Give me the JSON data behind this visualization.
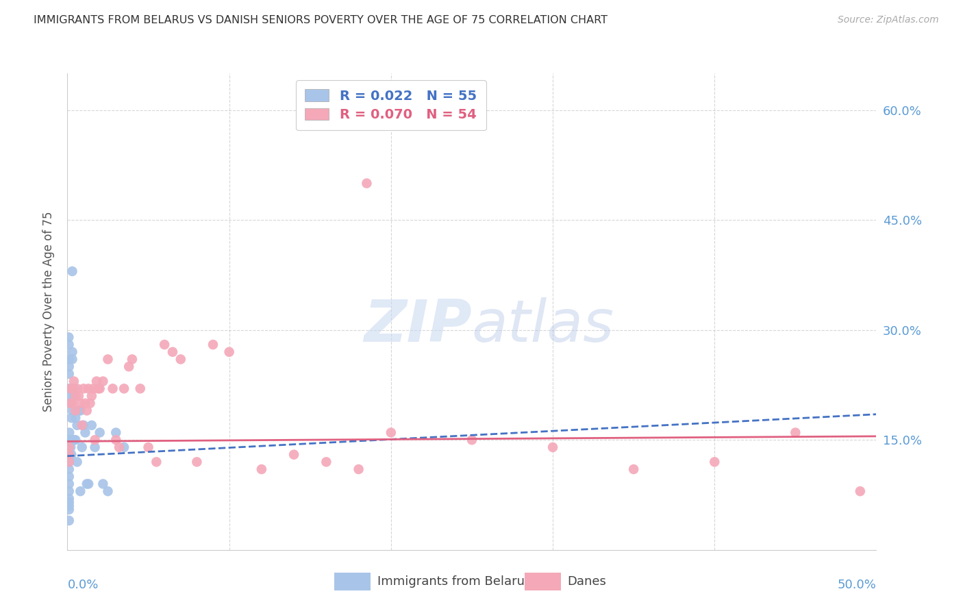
{
  "title": "IMMIGRANTS FROM BELARUS VS DANISH SENIORS POVERTY OVER THE AGE OF 75 CORRELATION CHART",
  "source": "Source: ZipAtlas.com",
  "ylabel": "Seniors Poverty Over the Age of 75",
  "right_yticks": [
    "60.0%",
    "45.0%",
    "30.0%",
    "15.0%"
  ],
  "right_ytick_vals": [
    0.6,
    0.45,
    0.3,
    0.15
  ],
  "legend_blue_label": "R = 0.022   N = 55",
  "legend_pink_label": "R = 0.070   N = 54",
  "legend_label_blue": "Immigrants from Belarus",
  "legend_label_pink": "Danes",
  "blue_color": "#a8c4e8",
  "pink_color": "#f4a8b8",
  "blue_line_color": "#4472c4",
  "pink_line_color": "#e06080",
  "axis_label_color": "#5b9bd5",
  "watermark_color": "#dce8f5",
  "xlim": [
    0.0,
    0.5
  ],
  "ylim": [
    0.0,
    0.65
  ],
  "blue_trend_x0": 0.0,
  "blue_trend_y0": 0.128,
  "blue_trend_x1": 0.5,
  "blue_trend_y1": 0.185,
  "pink_trend_x0": 0.0,
  "pink_trend_y0": 0.148,
  "pink_trend_x1": 0.5,
  "pink_trend_y1": 0.155,
  "background_color": "#ffffff",
  "grid_color": "#cccccc",
  "blue_x": [
    0.0008,
    0.0008,
    0.0009,
    0.001,
    0.001,
    0.001,
    0.001,
    0.001,
    0.001,
    0.001,
    0.001,
    0.001,
    0.001,
    0.001,
    0.0012,
    0.0015,
    0.002,
    0.002,
    0.0025,
    0.003,
    0.003,
    0.003,
    0.004,
    0.004,
    0.005,
    0.006,
    0.007,
    0.008,
    0.009,
    0.01,
    0.011,
    0.012,
    0.013,
    0.015,
    0.017,
    0.02,
    0.022,
    0.025,
    0.03,
    0.035,
    0.0008,
    0.0009,
    0.001,
    0.001,
    0.001,
    0.001,
    0.0015,
    0.002,
    0.0025,
    0.003,
    0.004,
    0.005,
    0.006,
    0.008,
    0.001
  ],
  "blue_y": [
    0.14,
    0.13,
    0.15,
    0.14,
    0.13,
    0.12,
    0.11,
    0.1,
    0.09,
    0.08,
    0.07,
    0.065,
    0.055,
    0.04,
    0.16,
    0.2,
    0.15,
    0.14,
    0.13,
    0.38,
    0.27,
    0.26,
    0.22,
    0.21,
    0.18,
    0.17,
    0.19,
    0.19,
    0.14,
    0.17,
    0.16,
    0.09,
    0.09,
    0.17,
    0.14,
    0.16,
    0.09,
    0.08,
    0.16,
    0.14,
    0.29,
    0.28,
    0.26,
    0.25,
    0.24,
    0.22,
    0.21,
    0.2,
    0.18,
    0.19,
    0.15,
    0.15,
    0.12,
    0.08,
    0.06
  ],
  "pink_x": [
    0.001,
    0.001,
    0.001,
    0.002,
    0.002,
    0.003,
    0.003,
    0.004,
    0.005,
    0.005,
    0.006,
    0.007,
    0.008,
    0.009,
    0.01,
    0.011,
    0.012,
    0.013,
    0.014,
    0.015,
    0.016,
    0.017,
    0.018,
    0.019,
    0.02,
    0.022,
    0.025,
    0.028,
    0.03,
    0.032,
    0.035,
    0.038,
    0.04,
    0.045,
    0.05,
    0.055,
    0.06,
    0.065,
    0.07,
    0.08,
    0.09,
    0.1,
    0.12,
    0.14,
    0.16,
    0.18,
    0.2,
    0.25,
    0.3,
    0.35,
    0.4,
    0.45,
    0.49,
    0.185
  ],
  "pink_y": [
    0.14,
    0.13,
    0.12,
    0.22,
    0.2,
    0.22,
    0.2,
    0.23,
    0.21,
    0.19,
    0.22,
    0.21,
    0.2,
    0.17,
    0.22,
    0.2,
    0.19,
    0.22,
    0.2,
    0.21,
    0.22,
    0.15,
    0.23,
    0.22,
    0.22,
    0.23,
    0.26,
    0.22,
    0.15,
    0.14,
    0.22,
    0.25,
    0.26,
    0.22,
    0.14,
    0.12,
    0.28,
    0.27,
    0.26,
    0.12,
    0.28,
    0.27,
    0.11,
    0.13,
    0.12,
    0.11,
    0.16,
    0.15,
    0.14,
    0.11,
    0.12,
    0.16,
    0.08,
    0.5
  ]
}
